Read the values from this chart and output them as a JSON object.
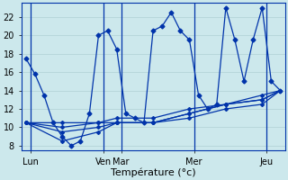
{
  "background_color": "#cce8ec",
  "grid_color": "#b0d0d4",
  "line_color": "#0033aa",
  "xlabel": "Température (°c)",
  "xlabel_fontsize": 8,
  "tick_label_fontsize": 7,
  "ylim": [
    7.5,
    23.5
  ],
  "yticks": [
    8,
    10,
    12,
    14,
    16,
    18,
    20,
    22
  ],
  "day_labels": [
    "Lun",
    "Ven",
    "Mar",
    "Mer",
    "Jeu"
  ],
  "day_x": [
    0.5,
    8.5,
    10.5,
    18.5,
    26.5
  ],
  "vline_x": [
    0.5,
    8.5,
    10.5,
    18.5,
    26.5
  ],
  "xlim": [
    -0.5,
    28.5
  ],
  "series_main": {
    "x": [
      0,
      1,
      2,
      3,
      4,
      5,
      6,
      7,
      8,
      9,
      10,
      11,
      12,
      13,
      14,
      15,
      16,
      17,
      18,
      19,
      20,
      21,
      22,
      23,
      24,
      25,
      26,
      27,
      28
    ],
    "y": [
      17.5,
      15.8,
      13.5,
      10.5,
      9.0,
      8.0,
      8.5,
      11.5,
      20.0,
      20.5,
      18.5,
      11.5,
      11.0,
      10.5,
      20.5,
      21.0,
      22.5,
      20.5,
      19.5,
      13.5,
      12.0,
      12.5,
      23.0,
      19.5,
      15.0,
      19.5,
      23.0,
      15.0,
      14.0
    ]
  },
  "series_smooth": [
    {
      "x": [
        0,
        4,
        8,
        10,
        14,
        18,
        22,
        26,
        28
      ],
      "y": [
        10.5,
        10.5,
        10.5,
        11.0,
        11.0,
        12.0,
        12.5,
        13.5,
        14.0
      ]
    },
    {
      "x": [
        0,
        4,
        8,
        10,
        14,
        18,
        22,
        26,
        28
      ],
      "y": [
        10.5,
        10.0,
        10.5,
        10.5,
        10.5,
        11.5,
        12.5,
        13.0,
        14.0
      ]
    },
    {
      "x": [
        0,
        4,
        8,
        10,
        14,
        18,
        22,
        26,
        28
      ],
      "y": [
        10.5,
        9.5,
        10.0,
        10.5,
        10.5,
        11.5,
        12.5,
        13.0,
        14.0
      ]
    },
    {
      "x": [
        0,
        4,
        8,
        10,
        14,
        18,
        22,
        26,
        28
      ],
      "y": [
        10.5,
        8.5,
        9.5,
        10.5,
        10.5,
        11.0,
        12.0,
        12.5,
        14.0
      ]
    }
  ],
  "linewidth": 0.9,
  "marker_size_main": 2.5,
  "marker_size_smooth": 2.0
}
